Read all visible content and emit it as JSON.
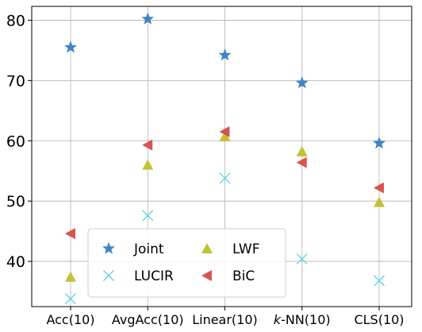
{
  "chart_data": {
    "type": "scatter",
    "categories": [
      "Acc(10)",
      "AvgAcc(10)",
      "Linear(10)",
      "k-NN(10)",
      "CLS(10)"
    ],
    "category_labels": [
      {
        "prefix": "",
        "italic": "",
        "suffix": "Acc(10)"
      },
      {
        "prefix": "",
        "italic": "",
        "suffix": "AvgAcc(10)"
      },
      {
        "prefix": "",
        "italic": "",
        "suffix": "Linear(10)"
      },
      {
        "prefix": "",
        "italic": "k",
        "suffix": "-NN(10)"
      },
      {
        "prefix": "",
        "italic": "",
        "suffix": "CLS(10)"
      }
    ],
    "series": [
      {
        "name": "Joint",
        "marker": "star",
        "color": "#3d85c6",
        "values": [
          75.5,
          80.2,
          74.2,
          69.6,
          59.6
        ]
      },
      {
        "name": "LWF",
        "marker": "triangle-up",
        "color": "#c2c236",
        "values": [
          37.4,
          56.0,
          60.7,
          58.2,
          49.8
        ]
      },
      {
        "name": "LUCIR",
        "marker": "x",
        "color": "#5fd3e0",
        "values": [
          33.8,
          47.6,
          53.8,
          40.4,
          36.8
        ]
      },
      {
        "name": "BiC",
        "marker": "triangle-left",
        "color": "#d9534f",
        "values": [
          44.6,
          59.3,
          61.5,
          56.4,
          52.2
        ]
      }
    ],
    "yticks": [
      40,
      50,
      60,
      70,
      80
    ],
    "ylim": [
      32.5,
      82.3
    ],
    "grid": true,
    "legend": {
      "placement": "bottom-left",
      "columns": 2
    },
    "title": "",
    "xlabel": "",
    "ylabel": ""
  }
}
